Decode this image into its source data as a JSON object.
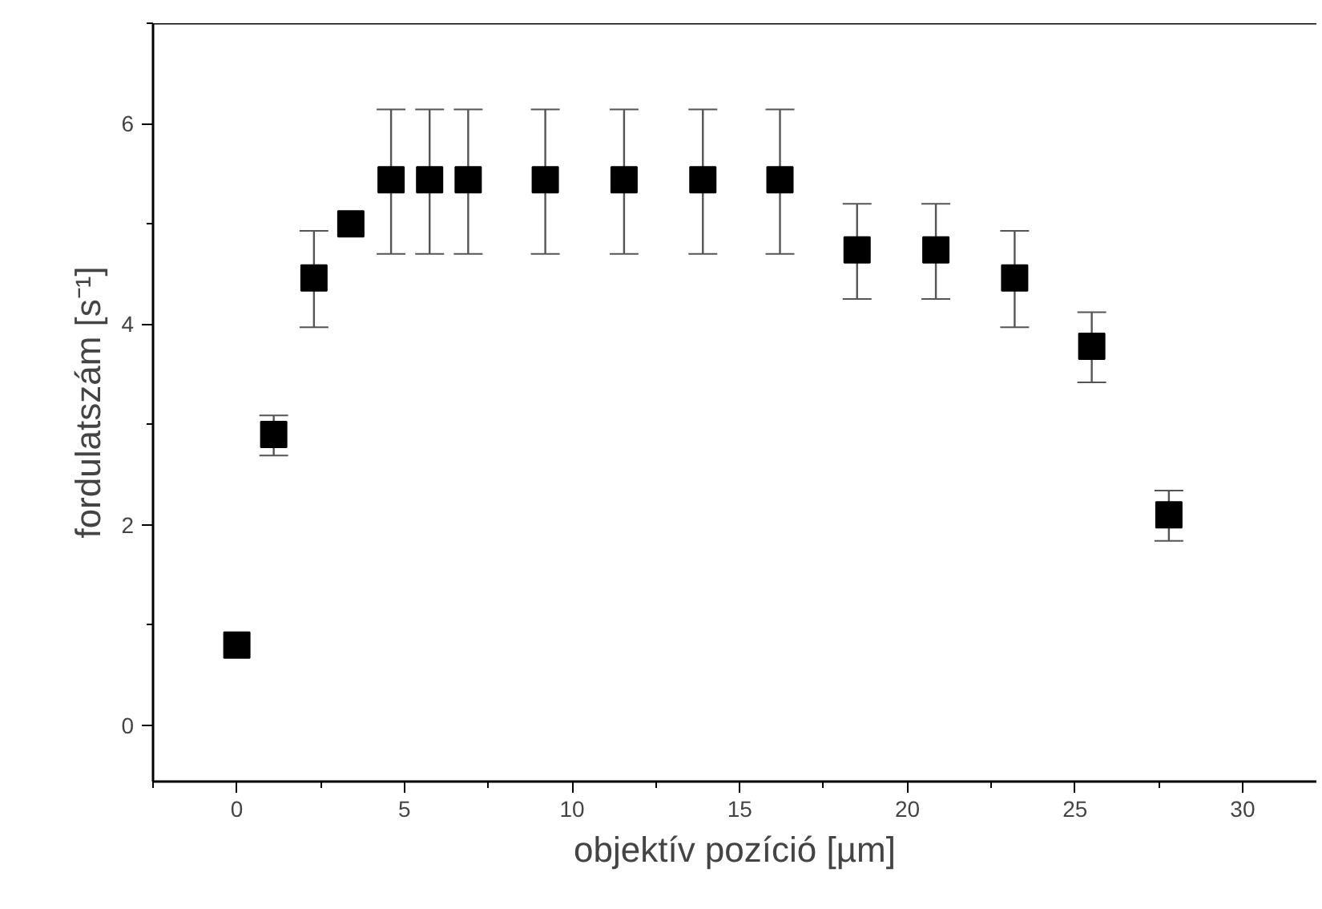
{
  "chart_data": {
    "type": "scatter",
    "xlabel": "objektív pozíció [µm]",
    "ylabel": "fordulatszám [s⁻¹]",
    "x": [
      0,
      1.1,
      2.3,
      3.4,
      4.6,
      5.75,
      6.9,
      9.2,
      11.55,
      13.9,
      16.2,
      18.5,
      20.85,
      23.2,
      25.5,
      27.8
    ],
    "series": [
      {
        "color": "#000000",
        "values": [
          0.8,
          2.9,
          4.46,
          5.0,
          5.44,
          5.44,
          5.44,
          5.44,
          5.44,
          5.44,
          5.44,
          4.74,
          4.74,
          4.46,
          3.78,
          2.1
        ],
        "errors": [
          null,
          [
            2.69,
            3.09
          ],
          [
            3.97,
            4.93
          ],
          null,
          [
            4.7,
            6.14
          ],
          [
            4.7,
            6.14
          ],
          [
            4.7,
            6.14
          ],
          [
            4.7,
            6.14
          ],
          [
            4.7,
            6.14
          ],
          [
            4.7,
            6.14
          ],
          [
            4.7,
            6.14
          ],
          [
            4.25,
            5.2
          ],
          [
            4.25,
            5.2
          ],
          [
            3.97,
            4.93
          ],
          [
            3.42,
            4.12
          ],
          [
            1.84,
            2.34
          ]
        ]
      }
    ],
    "xlim": [
      -2.5,
      32.2
    ],
    "ylim": [
      -0.56,
      7.0
    ],
    "xticks": [
      0,
      5,
      10,
      15,
      20,
      25,
      30
    ],
    "yticks": [
      0,
      2,
      4,
      6
    ],
    "marker": "square",
    "grid": false
  }
}
